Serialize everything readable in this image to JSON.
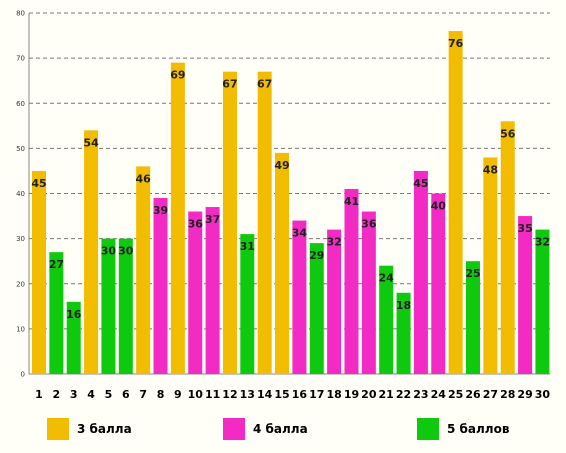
{
  "chart_data": {
    "type": "bar",
    "categories": [
      "1",
      "2",
      "3",
      "4",
      "5",
      "6",
      "7",
      "8",
      "9",
      "10",
      "11",
      "12",
      "13",
      "14",
      "15",
      "16",
      "17",
      "18",
      "19",
      "20",
      "21",
      "22",
      "23",
      "24",
      "25",
      "26",
      "27",
      "28",
      "29",
      "30"
    ],
    "values": [
      45,
      27,
      16,
      54,
      30,
      30,
      46,
      39,
      69,
      36,
      37,
      67,
      31,
      67,
      49,
      34,
      29,
      32,
      41,
      36,
      24,
      18,
      45,
      40,
      76,
      25,
      48,
      56,
      35,
      32
    ],
    "groups": [
      "3 балла",
      "5 баллов",
      "5 баллов",
      "3 балла",
      "5 баллов",
      "5 баллов",
      "3 балла",
      "4 балла",
      "3 балла",
      "4 балла",
      "4 балла",
      "3 балла",
      "5 баллов",
      "3 балла",
      "3 балла",
      "4 балла",
      "5 баллов",
      "4 балла",
      "4 балла",
      "4 балла",
      "5 баллов",
      "5 баллов",
      "4 балла",
      "4 балла",
      "3 балла",
      "5 баллов",
      "3 балла",
      "3 балла",
      "4 балла",
      "5 баллов"
    ],
    "yticks": [
      0,
      10,
      20,
      30,
      40,
      50,
      60,
      70,
      80
    ],
    "ylim": [
      0,
      80
    ],
    "grid": true,
    "legend_placement": "bottom",
    "legend": [
      {
        "label": "3 балла",
        "color": "#f2bc00"
      },
      {
        "label": "4 балла",
        "color": "#f22bc4"
      },
      {
        "label": "5 баллов",
        "color": "#0fc90f"
      }
    ]
  }
}
